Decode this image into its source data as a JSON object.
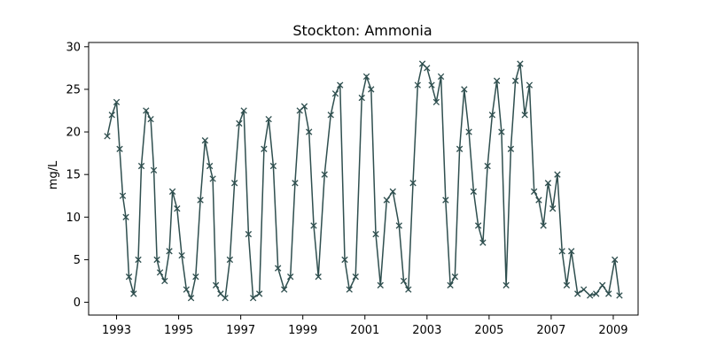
{
  "chart_data": {
    "type": "line",
    "title": "Stockton: Ammonia",
    "xlabel": "",
    "ylabel": "mg/L",
    "xlim": [
      1992.1,
      2009.8
    ],
    "ylim": [
      -1.5,
      30.5
    ],
    "x_ticks": [
      1993,
      1995,
      1997,
      1999,
      2001,
      2003,
      2005,
      2007,
      2009
    ],
    "y_ticks": [
      0,
      5,
      10,
      15,
      20,
      25,
      30
    ],
    "grid": false,
    "marker": "x",
    "color": "#2f4f4f",
    "series": [
      {
        "name": "",
        "x": [
          1992.7,
          1992.85,
          1993.0,
          1993.1,
          1993.2,
          1993.3,
          1993.4,
          1993.55,
          1993.7,
          1993.8,
          1993.95,
          1994.1,
          1994.2,
          1994.3,
          1994.4,
          1994.55,
          1994.7,
          1994.8,
          1994.95,
          1995.1,
          1995.25,
          1995.4,
          1995.55,
          1995.7,
          1995.85,
          1996.0,
          1996.1,
          1996.2,
          1996.35,
          1996.5,
          1996.65,
          1996.8,
          1996.95,
          1997.1,
          1997.25,
          1997.4,
          1997.6,
          1997.75,
          1997.9,
          1998.05,
          1998.2,
          1998.4,
          1998.6,
          1998.75,
          1998.9,
          1999.05,
          1999.2,
          1999.35,
          1999.5,
          1999.7,
          1999.9,
          2000.05,
          2000.2,
          2000.35,
          2000.5,
          2000.7,
          2000.9,
          2001.05,
          2001.2,
          2001.35,
          2001.5,
          2001.7,
          2001.9,
          2002.1,
          2002.25,
          2002.4,
          2002.55,
          2002.7,
          2002.85,
          2003.0,
          2003.15,
          2003.3,
          2003.45,
          2003.6,
          2003.75,
          2003.9,
          2004.05,
          2004.2,
          2004.35,
          2004.5,
          2004.65,
          2004.8,
          2004.95,
          2005.1,
          2005.25,
          2005.4,
          2005.55,
          2005.7,
          2005.85,
          2006.0,
          2006.15,
          2006.3,
          2006.45,
          2006.6,
          2006.75,
          2006.9,
          2007.05,
          2007.2,
          2007.35,
          2007.5,
          2007.65,
          2007.85,
          2008.05,
          2008.25,
          2008.45,
          2008.65,
          2008.85,
          2009.05,
          2009.2
        ],
        "y": [
          19.5,
          22.0,
          23.5,
          18.0,
          12.5,
          10.0,
          3.0,
          1.0,
          5.0,
          16.0,
          22.5,
          21.5,
          15.5,
          5.0,
          3.5,
          2.5,
          6.0,
          13.0,
          11.0,
          5.5,
          1.5,
          0.5,
          3.0,
          12.0,
          19.0,
          16.0,
          14.5,
          2.0,
          1.0,
          0.5,
          5.0,
          14.0,
          21.0,
          22.5,
          8.0,
          0.5,
          1.0,
          18.0,
          21.5,
          16.0,
          4.0,
          1.5,
          3.0,
          14.0,
          22.5,
          23.0,
          20.0,
          9.0,
          3.0,
          15.0,
          22.0,
          24.5,
          25.5,
          5.0,
          1.5,
          3.0,
          24.0,
          26.5,
          25.0,
          8.0,
          2.0,
          12.0,
          13.0,
          9.0,
          2.5,
          1.5,
          14.0,
          25.5,
          28.0,
          27.5,
          25.5,
          23.5,
          26.5,
          12.0,
          2.0,
          3.0,
          18.0,
          25.0,
          20.0,
          13.0,
          9.0,
          7.0,
          16.0,
          22.0,
          26.0,
          20.0,
          2.0,
          18.0,
          26.0,
          28.0,
          22.0,
          25.5,
          13.0,
          12.0,
          9.0,
          14.0,
          11.0,
          15.0,
          6.0,
          2.0,
          6.0,
          1.0,
          1.5,
          0.8,
          1.0,
          2.0,
          1.0,
          5.0,
          0.8
        ]
      }
    ]
  }
}
